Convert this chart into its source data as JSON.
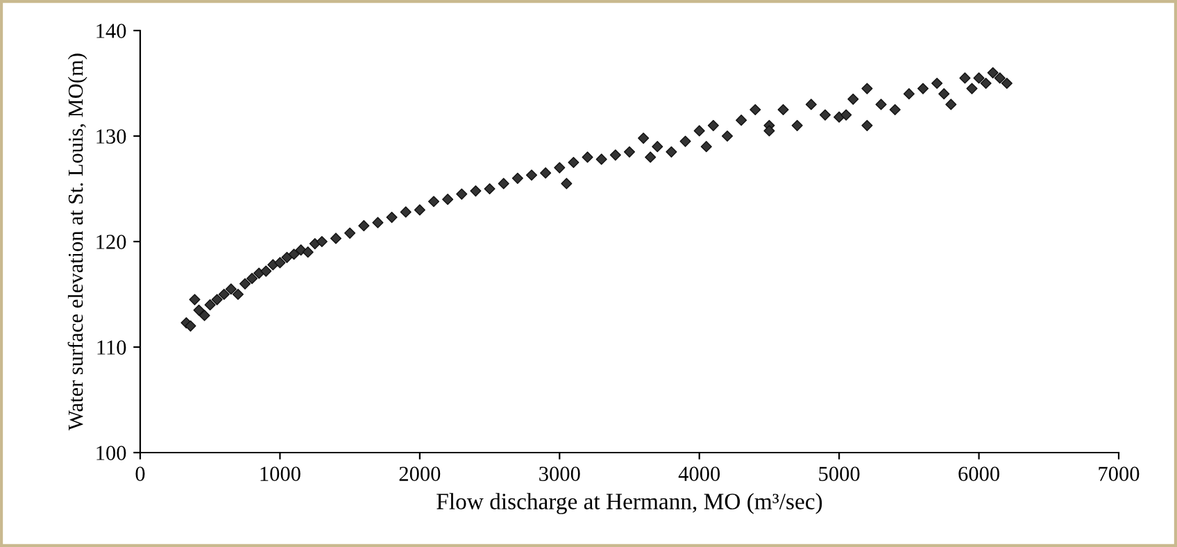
{
  "chart_data": {
    "type": "scatter",
    "xlabel": "Flow discharge at Hermann, MO (m³/sec)",
    "ylabel": "Water surface elevation at St. Louis, MO(m)",
    "xlim": [
      0,
      7000
    ],
    "xticks": [
      0,
      1000,
      2000,
      3000,
      4000,
      5000,
      6000,
      7000
    ],
    "ylim": [
      100,
      140
    ],
    "yticks": [
      100,
      110,
      120,
      130,
      140
    ],
    "grid": false,
    "marker": "diamond",
    "legend": false,
    "series": [
      {
        "color": "#333333",
        "x": [
          330,
          360,
          390,
          420,
          460,
          500,
          550,
          600,
          650,
          700,
          750,
          800,
          850,
          900,
          950,
          1000,
          1050,
          1100,
          1150,
          1200,
          1250,
          1300,
          1400,
          1500,
          1600,
          1700,
          1800,
          1900,
          2000,
          2100,
          2200,
          2300,
          2400,
          2500,
          2600,
          2700,
          2800,
          2900,
          3000,
          3050,
          3100,
          3200,
          3300,
          3400,
          3500,
          3600,
          3650,
          3700,
          3800,
          3900,
          4000,
          4050,
          4100,
          4200,
          4300,
          4400,
          4500,
          4500,
          4600,
          4700,
          4800,
          4900,
          5000,
          5050,
          5100,
          5200,
          5200,
          5300,
          5400,
          5500,
          5600,
          5700,
          5750,
          5800,
          5900,
          5950,
          6000,
          6050,
          6100,
          6150,
          6200
        ],
        "values": [
          112.3,
          112.0,
          114.5,
          113.5,
          113.0,
          114.0,
          114.5,
          115.0,
          115.5,
          115.0,
          116.0,
          116.5,
          117.0,
          117.2,
          117.8,
          118.0,
          118.5,
          118.8,
          119.2,
          119.0,
          119.8,
          120.0,
          120.3,
          120.8,
          121.5,
          121.8,
          122.3,
          122.8,
          123.0,
          123.8,
          124.0,
          124.5,
          124.8,
          125.0,
          125.5,
          126.0,
          126.3,
          126.5,
          127.0,
          125.5,
          127.5,
          128.0,
          127.8,
          128.2,
          128.5,
          129.8,
          128.0,
          129.0,
          128.5,
          129.5,
          130.5,
          129.0,
          131.0,
          130.0,
          131.5,
          132.5,
          131.0,
          130.5,
          132.5,
          131.0,
          133.0,
          132.0,
          131.8,
          132.0,
          133.5,
          134.5,
          131.0,
          133.0,
          132.5,
          134.0,
          134.5,
          135.0,
          134.0,
          133.0,
          135.5,
          134.5,
          135.5,
          135.0,
          136.0,
          135.5,
          135.0
        ]
      }
    ]
  }
}
